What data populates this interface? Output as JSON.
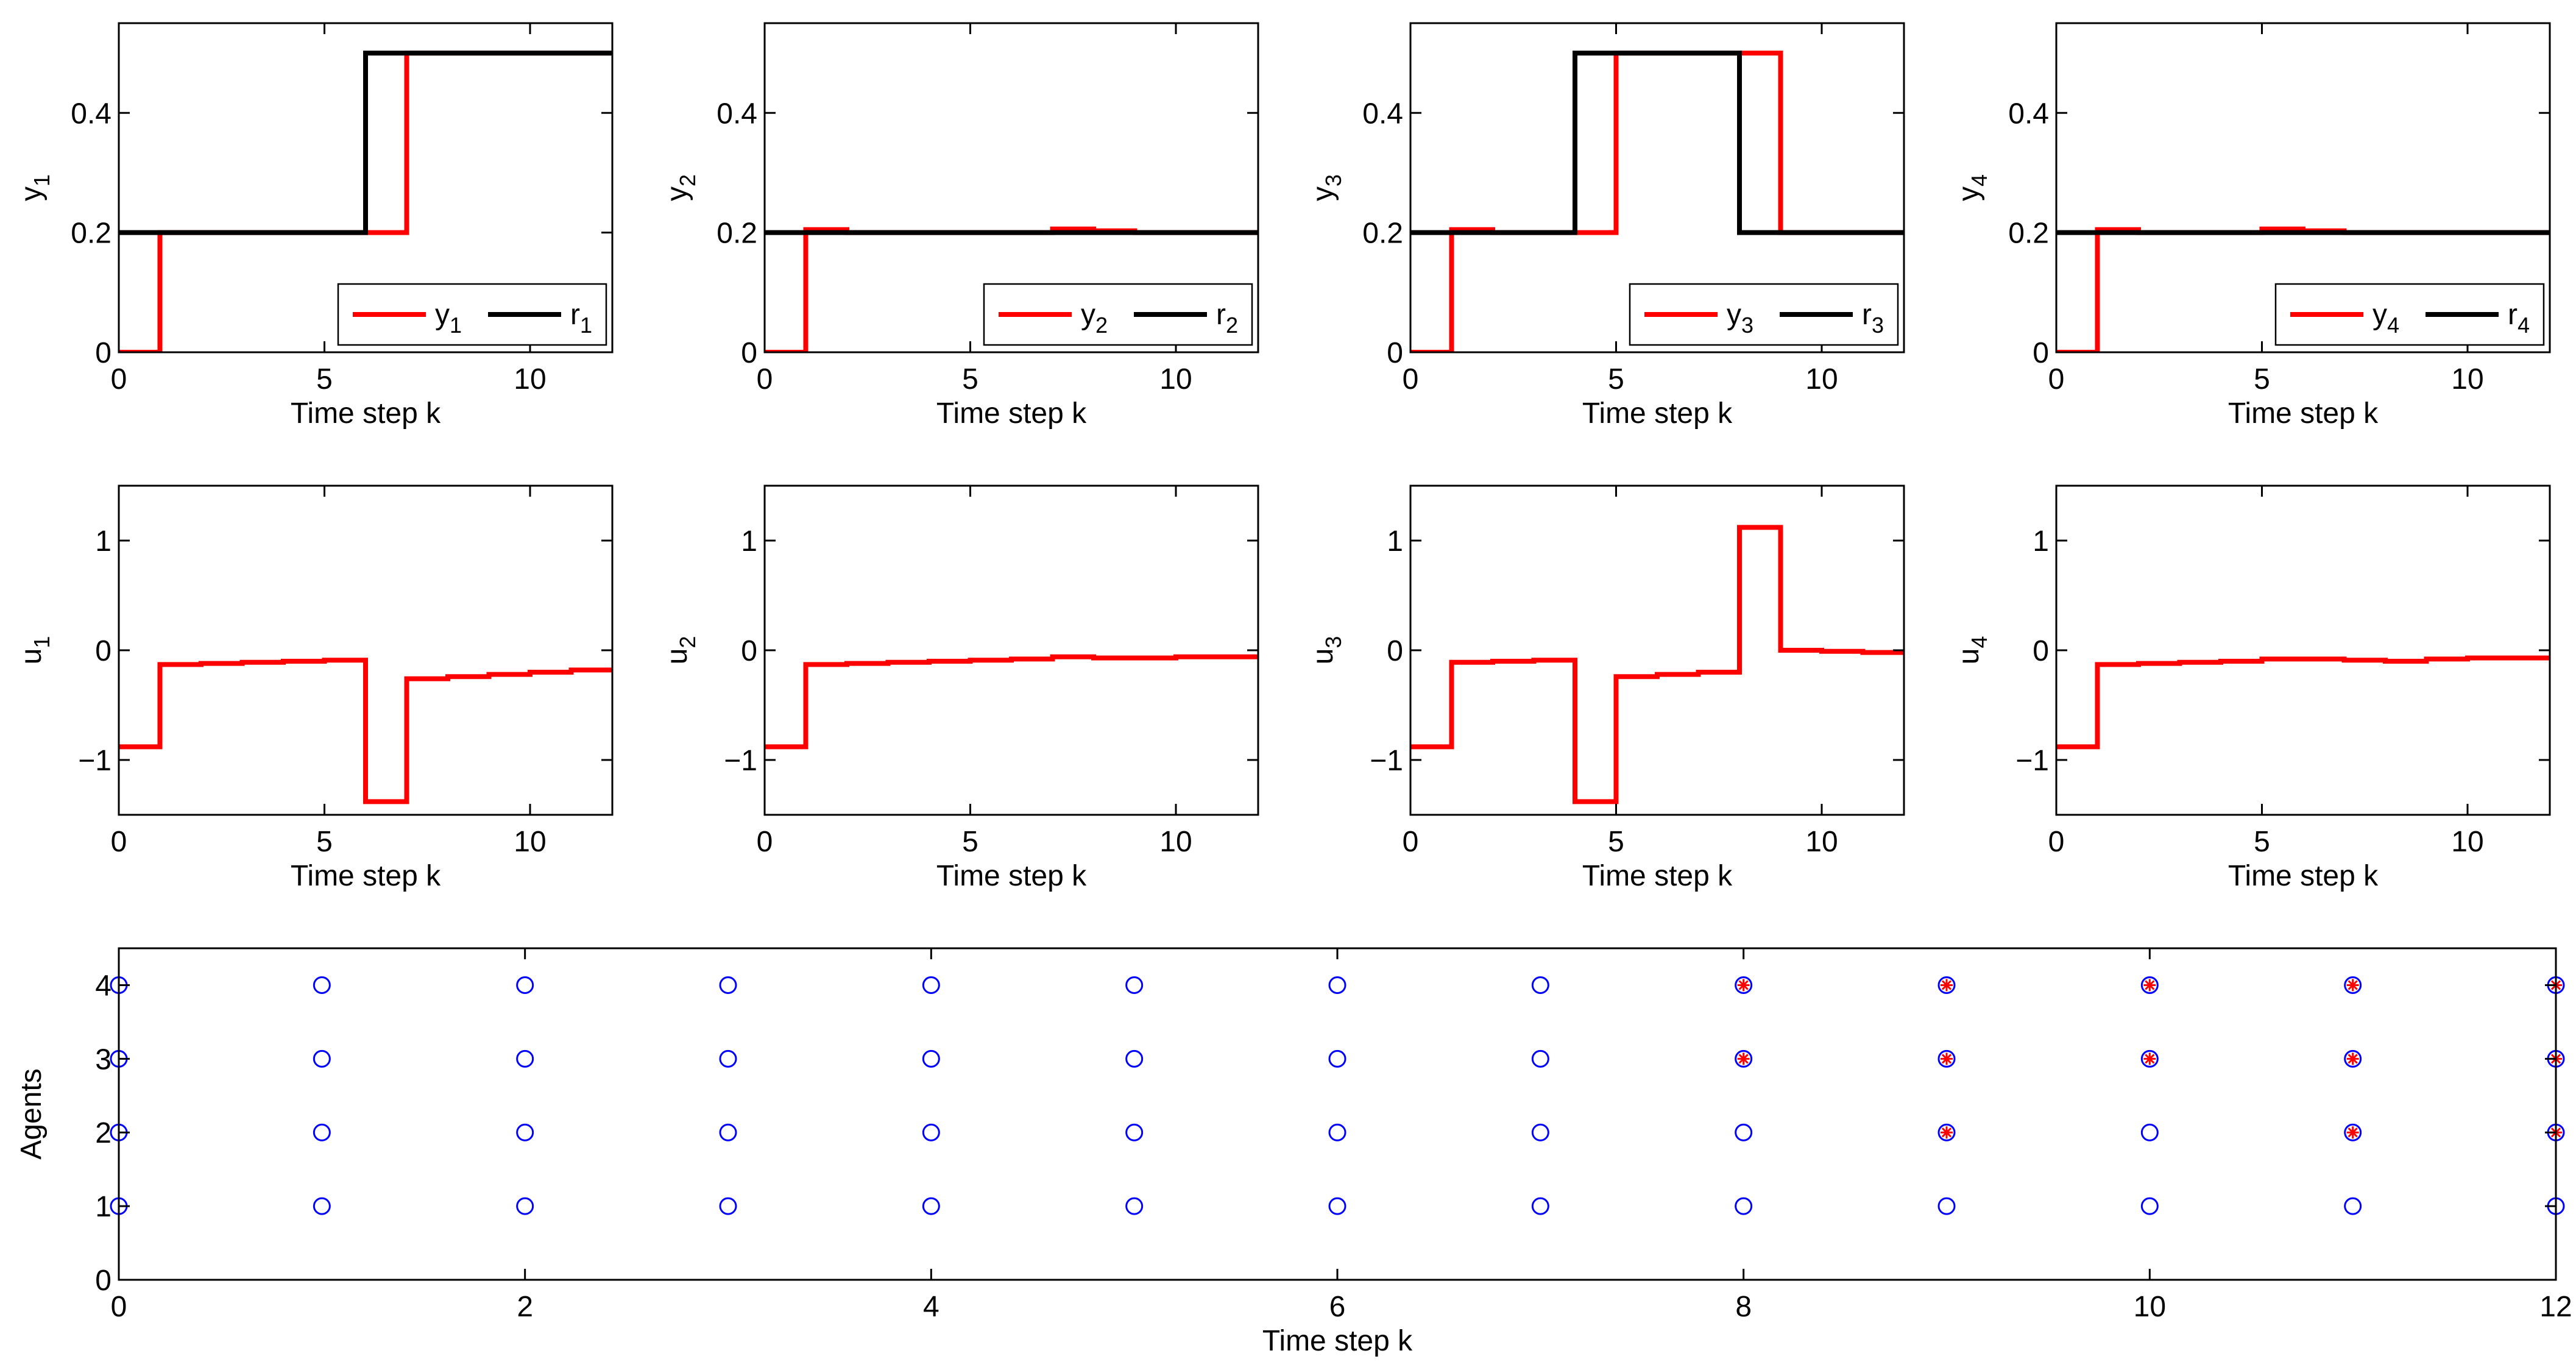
{
  "chart_data": [
    {
      "id": "y1",
      "type": "line",
      "xlabel": "Time step k",
      "ylabel": "y",
      "ylabel_sub": "1",
      "xlim": [
        0,
        12
      ],
      "ylim": [
        0,
        0.55
      ],
      "xticks": [
        0,
        5,
        10
      ],
      "xtick_labels": [
        "0",
        "5",
        "10"
      ],
      "yticks": [
        0,
        0.2,
        0.4
      ],
      "ytick_labels": [
        "0",
        "0.2",
        "0.4"
      ],
      "grid": false,
      "legend_position": "bottom-right",
      "series": [
        {
          "name": "y",
          "sub": "1",
          "color": "#ff0000",
          "step": true,
          "x": [
            0,
            1,
            2,
            3,
            4,
            5,
            6,
            7,
            8,
            9,
            10,
            11,
            12
          ],
          "y": [
            0,
            0.2,
            0.2,
            0.2,
            0.2,
            0.2,
            0.2,
            0.5,
            0.5,
            0.5,
            0.5,
            0.5,
            0.5
          ]
        },
        {
          "name": "r",
          "sub": "1",
          "color": "#000000",
          "step": true,
          "x": [
            0,
            1,
            2,
            3,
            4,
            5,
            6,
            7,
            8,
            9,
            10,
            11,
            12
          ],
          "y": [
            0.2,
            0.2,
            0.2,
            0.2,
            0.2,
            0.2,
            0.5,
            0.5,
            0.5,
            0.5,
            0.5,
            0.5,
            0.5
          ]
        }
      ]
    },
    {
      "id": "y2",
      "type": "line",
      "xlabel": "Time step k",
      "ylabel": "y",
      "ylabel_sub": "2",
      "xlim": [
        0,
        12
      ],
      "ylim": [
        0,
        0.55
      ],
      "xticks": [
        0,
        5,
        10
      ],
      "xtick_labels": [
        "0",
        "5",
        "10"
      ],
      "yticks": [
        0,
        0.2,
        0.4
      ],
      "ytick_labels": [
        "0",
        "0.2",
        "0.4"
      ],
      "grid": false,
      "legend_position": "bottom-right",
      "series": [
        {
          "name": "y",
          "sub": "2",
          "color": "#ff0000",
          "step": true,
          "x": [
            0,
            1,
            2,
            3,
            4,
            5,
            6,
            7,
            8,
            9,
            10,
            11,
            12
          ],
          "y": [
            0,
            0.205,
            0.2,
            0.2,
            0.2,
            0.2,
            0.2,
            0.206,
            0.203,
            0.2,
            0.2,
            0.2,
            0.2
          ]
        },
        {
          "name": "r",
          "sub": "2",
          "color": "#000000",
          "step": true,
          "x": [
            0,
            1,
            2,
            3,
            4,
            5,
            6,
            7,
            8,
            9,
            10,
            11,
            12
          ],
          "y": [
            0.2,
            0.2,
            0.2,
            0.2,
            0.2,
            0.2,
            0.2,
            0.2,
            0.2,
            0.2,
            0.2,
            0.2,
            0.2
          ]
        }
      ]
    },
    {
      "id": "y3",
      "type": "line",
      "xlabel": "Time step k",
      "ylabel": "y",
      "ylabel_sub": "3",
      "xlim": [
        0,
        12
      ],
      "ylim": [
        0,
        0.55
      ],
      "xticks": [
        0,
        5,
        10
      ],
      "xtick_labels": [
        "0",
        "5",
        "10"
      ],
      "yticks": [
        0,
        0.2,
        0.4
      ],
      "ytick_labels": [
        "0",
        "0.2",
        "0.4"
      ],
      "grid": false,
      "legend_position": "bottom-right",
      "series": [
        {
          "name": "y",
          "sub": "3",
          "color": "#ff0000",
          "step": true,
          "x": [
            0,
            1,
            2,
            3,
            4,
            5,
            6,
            7,
            8,
            9,
            10,
            11,
            12
          ],
          "y": [
            0,
            0.205,
            0.2,
            0.2,
            0.2,
            0.5,
            0.5,
            0.5,
            0.5,
            0.2,
            0.2,
            0.2,
            0.2
          ]
        },
        {
          "name": "r",
          "sub": "3",
          "color": "#000000",
          "step": true,
          "x": [
            0,
            1,
            2,
            3,
            4,
            5,
            6,
            7,
            8,
            9,
            10,
            11,
            12
          ],
          "y": [
            0.2,
            0.2,
            0.2,
            0.2,
            0.5,
            0.5,
            0.5,
            0.5,
            0.2,
            0.2,
            0.2,
            0.2,
            0.2
          ]
        }
      ]
    },
    {
      "id": "y4",
      "type": "line",
      "xlabel": "Time step k",
      "ylabel": "y",
      "ylabel_sub": "4",
      "xlim": [
        0,
        12
      ],
      "ylim": [
        0,
        0.55
      ],
      "xticks": [
        0,
        5,
        10
      ],
      "xtick_labels": [
        "0",
        "5",
        "10"
      ],
      "yticks": [
        0,
        0.2,
        0.4
      ],
      "ytick_labels": [
        "0",
        "0.2",
        "0.4"
      ],
      "grid": false,
      "legend_position": "bottom-right",
      "series": [
        {
          "name": "y",
          "sub": "4",
          "color": "#ff0000",
          "step": true,
          "x": [
            0,
            1,
            2,
            3,
            4,
            5,
            6,
            7,
            8,
            9,
            10,
            11,
            12
          ],
          "y": [
            0,
            0.205,
            0.2,
            0.2,
            0.2,
            0.206,
            0.203,
            0.2,
            0.2,
            0.2,
            0.2,
            0.2,
            0.2
          ]
        },
        {
          "name": "r",
          "sub": "4",
          "color": "#000000",
          "step": true,
          "x": [
            0,
            1,
            2,
            3,
            4,
            5,
            6,
            7,
            8,
            9,
            10,
            11,
            12
          ],
          "y": [
            0.2,
            0.2,
            0.2,
            0.2,
            0.2,
            0.2,
            0.2,
            0.2,
            0.2,
            0.2,
            0.2,
            0.2,
            0.2
          ]
        }
      ]
    },
    {
      "id": "u1",
      "type": "line",
      "xlabel": "Time step k",
      "ylabel": "u",
      "ylabel_sub": "1",
      "xlim": [
        0,
        12
      ],
      "ylim": [
        -1.5,
        1.5
      ],
      "xticks": [
        0,
        5,
        10
      ],
      "xtick_labels": [
        "0",
        "5",
        "10"
      ],
      "yticks": [
        -1,
        0,
        1
      ],
      "ytick_labels": [
        "−1",
        "0",
        "1"
      ],
      "grid": false,
      "legend_position": "none",
      "series": [
        {
          "name": "u",
          "sub": "1",
          "color": "#ff0000",
          "step": true,
          "x": [
            0,
            1,
            2,
            3,
            4,
            5,
            6,
            7,
            8,
            9,
            10,
            11,
            12
          ],
          "y": [
            -0.88,
            -0.13,
            -0.12,
            -0.11,
            -0.1,
            -0.09,
            -1.38,
            -0.26,
            -0.24,
            -0.22,
            -0.2,
            -0.18,
            -0.18
          ]
        }
      ]
    },
    {
      "id": "u2",
      "type": "line",
      "xlabel": "Time step k",
      "ylabel": "u",
      "ylabel_sub": "2",
      "xlim": [
        0,
        12
      ],
      "ylim": [
        -1.5,
        1.5
      ],
      "xticks": [
        0,
        5,
        10
      ],
      "xtick_labels": [
        "0",
        "5",
        "10"
      ],
      "yticks": [
        -1,
        0,
        1
      ],
      "ytick_labels": [
        "−1",
        "0",
        "1"
      ],
      "grid": false,
      "legend_position": "none",
      "series": [
        {
          "name": "u",
          "sub": "2",
          "color": "#ff0000",
          "step": true,
          "x": [
            0,
            1,
            2,
            3,
            4,
            5,
            6,
            7,
            8,
            9,
            10,
            11,
            12
          ],
          "y": [
            -0.88,
            -0.13,
            -0.12,
            -0.11,
            -0.1,
            -0.09,
            -0.08,
            -0.06,
            -0.07,
            -0.07,
            -0.06,
            -0.06,
            -0.06
          ]
        }
      ]
    },
    {
      "id": "u3",
      "type": "line",
      "xlabel": "Time step k",
      "ylabel": "u",
      "ylabel_sub": "3",
      "xlim": [
        0,
        12
      ],
      "ylim": [
        -1.5,
        1.5
      ],
      "xticks": [
        0,
        5,
        10
      ],
      "xtick_labels": [
        "0",
        "5",
        "10"
      ],
      "yticks": [
        -1,
        0,
        1
      ],
      "ytick_labels": [
        "−1",
        "0",
        "1"
      ],
      "grid": false,
      "legend_position": "none",
      "series": [
        {
          "name": "u",
          "sub": "3",
          "color": "#ff0000",
          "step": true,
          "x": [
            0,
            1,
            2,
            3,
            4,
            5,
            6,
            7,
            8,
            9,
            10,
            11,
            12
          ],
          "y": [
            -0.88,
            -0.11,
            -0.1,
            -0.09,
            -1.38,
            -0.24,
            -0.22,
            -0.2,
            1.12,
            0,
            -0.01,
            -0.02,
            -0.02
          ]
        }
      ]
    },
    {
      "id": "u4",
      "type": "line",
      "xlabel": "Time step k",
      "ylabel": "u",
      "ylabel_sub": "4",
      "xlim": [
        0,
        12
      ],
      "ylim": [
        -1.5,
        1.5
      ],
      "xticks": [
        0,
        5,
        10
      ],
      "xtick_labels": [
        "0",
        "5",
        "10"
      ],
      "yticks": [
        -1,
        0,
        1
      ],
      "ytick_labels": [
        "−1",
        "0",
        "1"
      ],
      "grid": false,
      "legend_position": "none",
      "series": [
        {
          "name": "u",
          "sub": "4",
          "color": "#ff0000",
          "step": true,
          "x": [
            0,
            1,
            2,
            3,
            4,
            5,
            6,
            7,
            8,
            9,
            10,
            11,
            12
          ],
          "y": [
            -0.88,
            -0.13,
            -0.12,
            -0.11,
            -0.1,
            -0.08,
            -0.08,
            -0.09,
            -0.1,
            -0.08,
            -0.07,
            -0.07,
            -0.07
          ]
        }
      ]
    },
    {
      "id": "agents",
      "type": "scatter",
      "xlabel": "Time step k",
      "ylabel": "Agents",
      "xlim": [
        0,
        12
      ],
      "ylim": [
        0,
        4.5
      ],
      "xticks": [
        0,
        2,
        4,
        6,
        8,
        10,
        12
      ],
      "xtick_labels": [
        "0",
        "2",
        "4",
        "6",
        "8",
        "10",
        "12"
      ],
      "yticks": [
        0,
        1,
        2,
        3,
        4
      ],
      "ytick_labels": [
        "0",
        "1",
        "2",
        "3",
        "4"
      ],
      "grid": false,
      "legend_position": "none",
      "circle_color": "#0000ff",
      "star_color": "#ff0000",
      "circles": {
        "x": [
          0,
          1,
          2,
          3,
          4,
          5,
          6,
          7,
          8,
          9,
          10,
          11,
          12
        ],
        "agents": [
          1,
          2,
          3,
          4
        ]
      },
      "stars": [
        [
          8,
          3
        ],
        [
          8,
          4
        ],
        [
          9,
          2
        ],
        [
          9,
          3
        ],
        [
          9,
          4
        ],
        [
          10,
          3
        ],
        [
          10,
          4
        ],
        [
          11,
          2
        ],
        [
          11,
          3
        ],
        [
          11,
          4
        ],
        [
          12,
          2
        ],
        [
          12,
          3
        ],
        [
          12,
          4
        ]
      ]
    }
  ]
}
